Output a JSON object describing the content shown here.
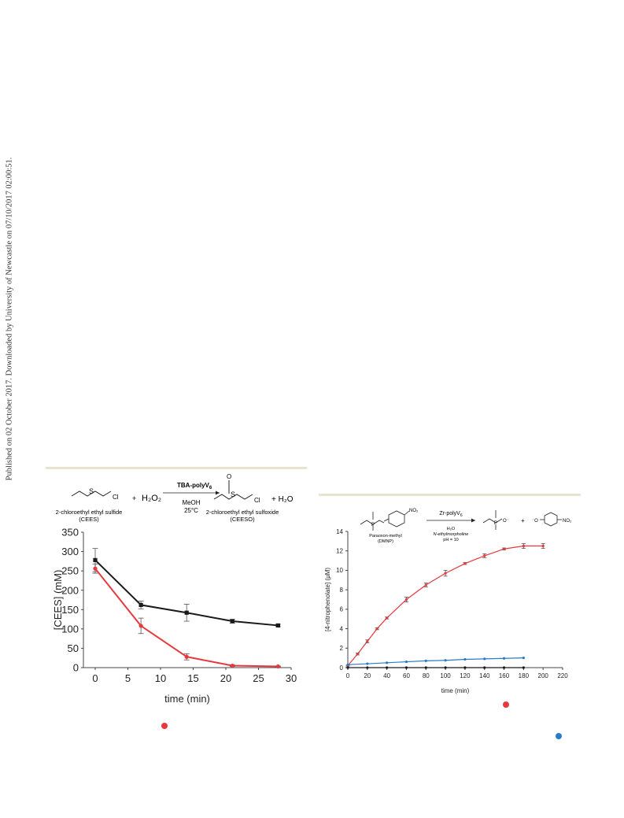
{
  "margin_note": "Published on 02 October 2017. Downloaded by University of Newcastle on 07/10/2017 02:00:51.",
  "colors": {
    "rule": "#e8e4cf",
    "red": "#e8383d",
    "black": "#1a1a1a",
    "blue": "#2a7bc8"
  },
  "scheme_left": {
    "reactant_name": "2-chloroethyl ethyl sulfide",
    "reactant_abbr": "(CEES)",
    "reagent": "TBA-polyV",
    "reagent_sub": "6",
    "conditions_1": "MeOH",
    "conditions_2": "25°C",
    "product_name": "2-chloroethyl ethyl sulfoxide",
    "product_abbr": "(CEESO)",
    "plus_1": "+",
    "h2o2": "H₂O₂",
    "plus_2": "+ H₂O",
    "atom_s": "S",
    "atom_cl": "Cl",
    "atom_o": "O",
    "atom_s2": "S",
    "atom_cl2": "Cl"
  },
  "scheme_right": {
    "reactant_name": "Paraoxon-methyl",
    "reactant_abbr": "(DMNP)",
    "reagent": "Zr-polyV",
    "reagent_sub": "6",
    "conditions_1": "H₂O",
    "conditions_2": "N-ethylmorpholine",
    "conditions_3": "pH = 10",
    "plus": "+",
    "no2_a": "NO₂",
    "no2_b": "NO₂",
    "p_a": "P",
    "p_b": "P",
    "o_minus_a": "O⁻",
    "o_minus_b": "⁻O"
  },
  "legend_dots": {
    "left": "red",
    "right_a": "red",
    "right_b": "blue"
  },
  "chart_data": [
    {
      "type": "line",
      "title": "",
      "xlabel": "time (min)",
      "ylabel": "[CEES] (mM)",
      "xlim": [
        0,
        30
      ],
      "ylim": [
        0,
        350
      ],
      "xticks": [
        0,
        5,
        10,
        15,
        20,
        25,
        30
      ],
      "yticks": [
        0,
        50,
        100,
        150,
        200,
        250,
        300,
        350
      ],
      "grid": false,
      "series": [
        {
          "color": "black",
          "marker": "square",
          "x": [
            0,
            7,
            14,
            21,
            28
          ],
          "y": [
            278,
            162,
            142,
            120,
            109
          ],
          "err": [
            30,
            10,
            22,
            5,
            3
          ]
        },
        {
          "color": "red",
          "marker": "circle",
          "x": [
            0,
            7,
            14,
            21,
            28
          ],
          "y": [
            256,
            108,
            28,
            5,
            3
          ],
          "err": [
            12,
            20,
            8,
            2,
            1
          ]
        }
      ]
    },
    {
      "type": "line",
      "title": "",
      "xlabel": "time (min)",
      "ylabel": "[4-nitrophenolate] (μM)",
      "xlim": [
        0,
        220
      ],
      "ylim": [
        0,
        14
      ],
      "xticks": [
        0,
        20,
        40,
        60,
        80,
        100,
        120,
        140,
        160,
        180,
        200,
        220
      ],
      "yticks": [
        0,
        2,
        4,
        6,
        8,
        10,
        12,
        14
      ],
      "grid": false,
      "series": [
        {
          "color": "red",
          "marker": "circle",
          "x": [
            0,
            10,
            20,
            30,
            40,
            60,
            80,
            100,
            120,
            140,
            160,
            180,
            200
          ],
          "y": [
            0.2,
            1.4,
            2.7,
            4.0,
            5.1,
            7.0,
            8.5,
            9.7,
            10.7,
            11.5,
            12.2,
            12.5,
            12.5
          ],
          "err": [
            0.05,
            0.1,
            0.15,
            0.1,
            0.1,
            0.25,
            0.2,
            0.3,
            0.1,
            0.2,
            0.1,
            0.25,
            0.25
          ]
        },
        {
          "color": "blue",
          "marker": "circle",
          "x": [
            0,
            20,
            40,
            60,
            80,
            100,
            120,
            140,
            160,
            180
          ],
          "y": [
            0.3,
            0.4,
            0.5,
            0.6,
            0.7,
            0.75,
            0.85,
            0.9,
            0.95,
            1.0
          ],
          "err": [
            0,
            0,
            0,
            0,
            0,
            0,
            0,
            0,
            0,
            0
          ]
        },
        {
          "color": "black",
          "marker": "circle",
          "x": [
            0,
            20,
            40,
            60,
            80,
            100,
            120,
            140,
            160,
            180
          ],
          "y": [
            0,
            0,
            0,
            0,
            0,
            0,
            0,
            0,
            0,
            0
          ],
          "err": [
            0,
            0,
            0,
            0,
            0,
            0,
            0,
            0,
            0,
            0
          ]
        }
      ]
    }
  ]
}
